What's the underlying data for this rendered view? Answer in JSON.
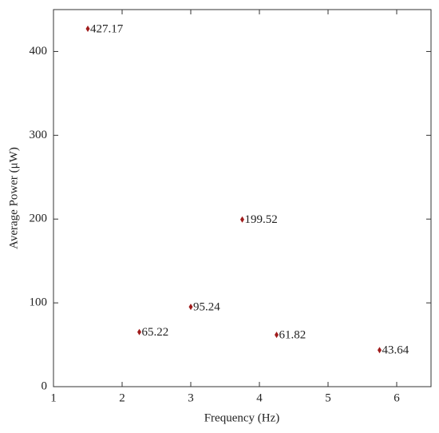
{
  "chart_data": {
    "type": "scatter",
    "x_label": "Frequency (Hz)",
    "y_label": "Average Power  (μW)",
    "x": [
      1.5,
      2.25,
      3,
      3.75,
      4.25,
      5.75
    ],
    "values": [
      427.17,
      65.22,
      95.24,
      199.52,
      61.82,
      43.64
    ],
    "color": "#a01c1c",
    "xlim": [
      1,
      6.5
    ],
    "ylim": [
      0,
      450
    ],
    "xticks": [
      1,
      2,
      3,
      4,
      5,
      6
    ],
    "yticks": [
      0,
      100,
      200,
      300,
      400
    ],
    "grid": false
  }
}
